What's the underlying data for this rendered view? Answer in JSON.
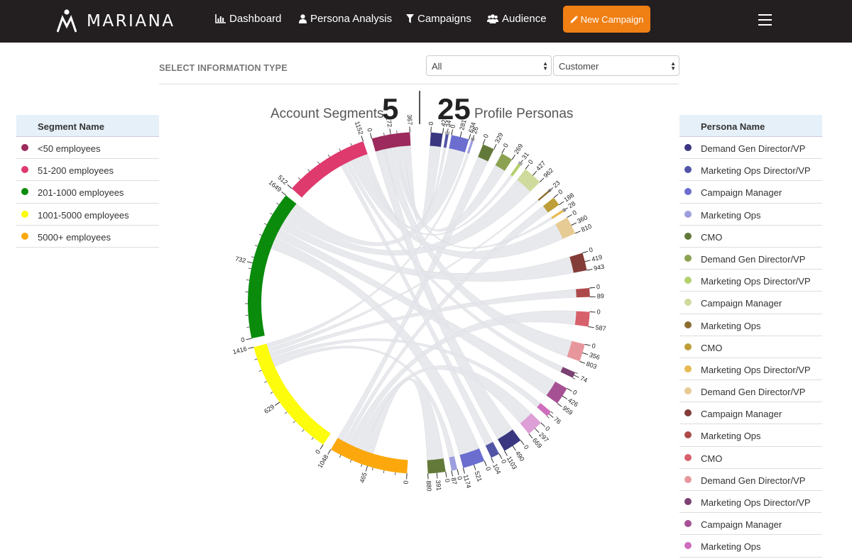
{
  "nav": {
    "brand": "MARIANA",
    "items": [
      {
        "label": "Dashboard",
        "icon": "bar-chart-icon"
      },
      {
        "label": "Persona Analysis",
        "icon": "user-icon"
      },
      {
        "label": "Campaigns",
        "icon": "filter-icon"
      },
      {
        "label": "Audience",
        "icon": "users-icon"
      }
    ],
    "new_campaign": "New Campaign"
  },
  "filters": {
    "label": "SELECT INFORMATION TYPE",
    "select_a": "All",
    "select_b": "Customer"
  },
  "stats": {
    "segments_label": "Account Segments",
    "segments_value": "5",
    "personas_value": "25",
    "personas_label": "Profile Personas"
  },
  "segments_legend": {
    "header": "Segment Name",
    "items": [
      {
        "name": "<50 employees",
        "color": "#9c2a5c"
      },
      {
        "name": "51-200 employees",
        "color": "#de3a6e"
      },
      {
        "name": "201-1000 employees",
        "color": "#0a8b0c"
      },
      {
        "name": "1001-5000 employees",
        "color": "#fcfc0c"
      },
      {
        "name": "5000+ employees",
        "color": "#fca80c"
      }
    ]
  },
  "personas_legend": {
    "header": "Persona Name",
    "items": [
      {
        "name": "Demand Gen Director/VP",
        "color": "#3a3780"
      },
      {
        "name": "Marketing Ops Director/VP",
        "color": "#5255a6"
      },
      {
        "name": "Campaign Manager",
        "color": "#6b6ecf"
      },
      {
        "name": "Marketing Ops",
        "color": "#9c9ede"
      },
      {
        "name": "CMO",
        "color": "#637939"
      },
      {
        "name": "Demand Gen Director/VP",
        "color": "#8ca252"
      },
      {
        "name": "Marketing Ops Director/VP",
        "color": "#b5cf6b"
      },
      {
        "name": "Campaign Manager",
        "color": "#cedb9c"
      },
      {
        "name": "Marketing Ops",
        "color": "#8c6d31"
      },
      {
        "name": "CMO",
        "color": "#bd9e39"
      },
      {
        "name": "Marketing Ops Director/VP",
        "color": "#e7ba52"
      },
      {
        "name": "Demand Gen Director/VP",
        "color": "#e7cb94"
      },
      {
        "name": "Campaign Manager",
        "color": "#843c39"
      },
      {
        "name": "Marketing Ops",
        "color": "#ad494a"
      },
      {
        "name": "CMO",
        "color": "#d6616b"
      },
      {
        "name": "Demand Gen Director/VP",
        "color": "#e7969c"
      },
      {
        "name": "Marketing Ops Director/VP",
        "color": "#7b4173"
      },
      {
        "name": "Campaign Manager",
        "color": "#a55194"
      },
      {
        "name": "Marketing Ops",
        "color": "#ce6dbd"
      }
    ]
  },
  "chart_data": {
    "type": "chord",
    "segments": [
      {
        "name": "<50 employees",
        "color": "#9c2a5c",
        "ticks": [
          "0",
          "172",
          "367"
        ]
      },
      {
        "name": "51-200 employees",
        "color": "#de3a6e",
        "ticks": [
          "512",
          "1152"
        ]
      },
      {
        "name": "201-1000 employees",
        "color": "#0a8b0c",
        "ticks": [
          "0",
          "732",
          "1649"
        ]
      },
      {
        "name": "1001-5000 employees",
        "color": "#fcfc0c",
        "ticks": [
          "0",
          "629",
          "1416"
        ]
      },
      {
        "name": "5000+ employees",
        "color": "#fca80c",
        "ticks": [
          "0",
          "465",
          "1048"
        ]
      }
    ],
    "persona_arcs": [
      {
        "color": "#3a3780",
        "ticks": [
          "0",
          "424"
        ]
      },
      {
        "color": "#5255a6",
        "ticks": [
          "34"
        ]
      },
      {
        "color": "#6b6ecf",
        "ticks": [
          "0",
          "281",
          "634"
        ]
      },
      {
        "color": "#9c9ede",
        "ticks": [
          "26"
        ]
      },
      {
        "color": "#637939",
        "ticks": [
          "0",
          "329"
        ]
      },
      {
        "color": "#8ca252",
        "ticks": [
          "0",
          "269"
        ]
      },
      {
        "color": "#b5cf6b",
        "ticks": [
          "31"
        ]
      },
      {
        "color": "#cedb9c",
        "ticks": [
          "0",
          "427",
          "962"
        ]
      },
      {
        "color": "#8c6d31",
        "ticks": [
          "23"
        ]
      },
      {
        "color": "#bd9e39",
        "ticks": [
          "0",
          "188"
        ]
      },
      {
        "color": "#e7ba52",
        "ticks": [
          "28"
        ]
      },
      {
        "color": "#e7cb94",
        "ticks": [
          "0",
          "360",
          "810"
        ]
      },
      {
        "color": "#843c39",
        "ticks": [
          "0",
          "419",
          "943"
        ]
      },
      {
        "color": "#ad494a",
        "ticks": [
          "0",
          "89"
        ]
      },
      {
        "color": "#d6616b",
        "ticks": [
          "0",
          "587"
        ]
      },
      {
        "color": "#e7969c",
        "ticks": [
          "0",
          "356",
          "803"
        ]
      },
      {
        "color": "#7b4173",
        "ticks": [
          "74"
        ]
      },
      {
        "color": "#a55194",
        "ticks": [
          "0",
          "426",
          "959"
        ]
      },
      {
        "color": "#ce6dbd",
        "ticks": [
          "76"
        ]
      },
      {
        "color": "#de9ed6",
        "ticks": [
          "0",
          "297",
          "669"
        ]
      },
      {
        "color": "#3a3780",
        "ticks": [
          "0",
          "490",
          "1103"
        ]
      },
      {
        "color": "#5255a6",
        "ticks": [
          "0",
          "104"
        ]
      },
      {
        "color": "#6b6ecf",
        "ticks": [
          "0",
          "521",
          "1174"
        ]
      },
      {
        "color": "#9c9ede",
        "ticks": [
          "0",
          "87"
        ]
      },
      {
        "color": "#637939",
        "ticks": [
          "0",
          "391",
          "880"
        ]
      }
    ]
  }
}
